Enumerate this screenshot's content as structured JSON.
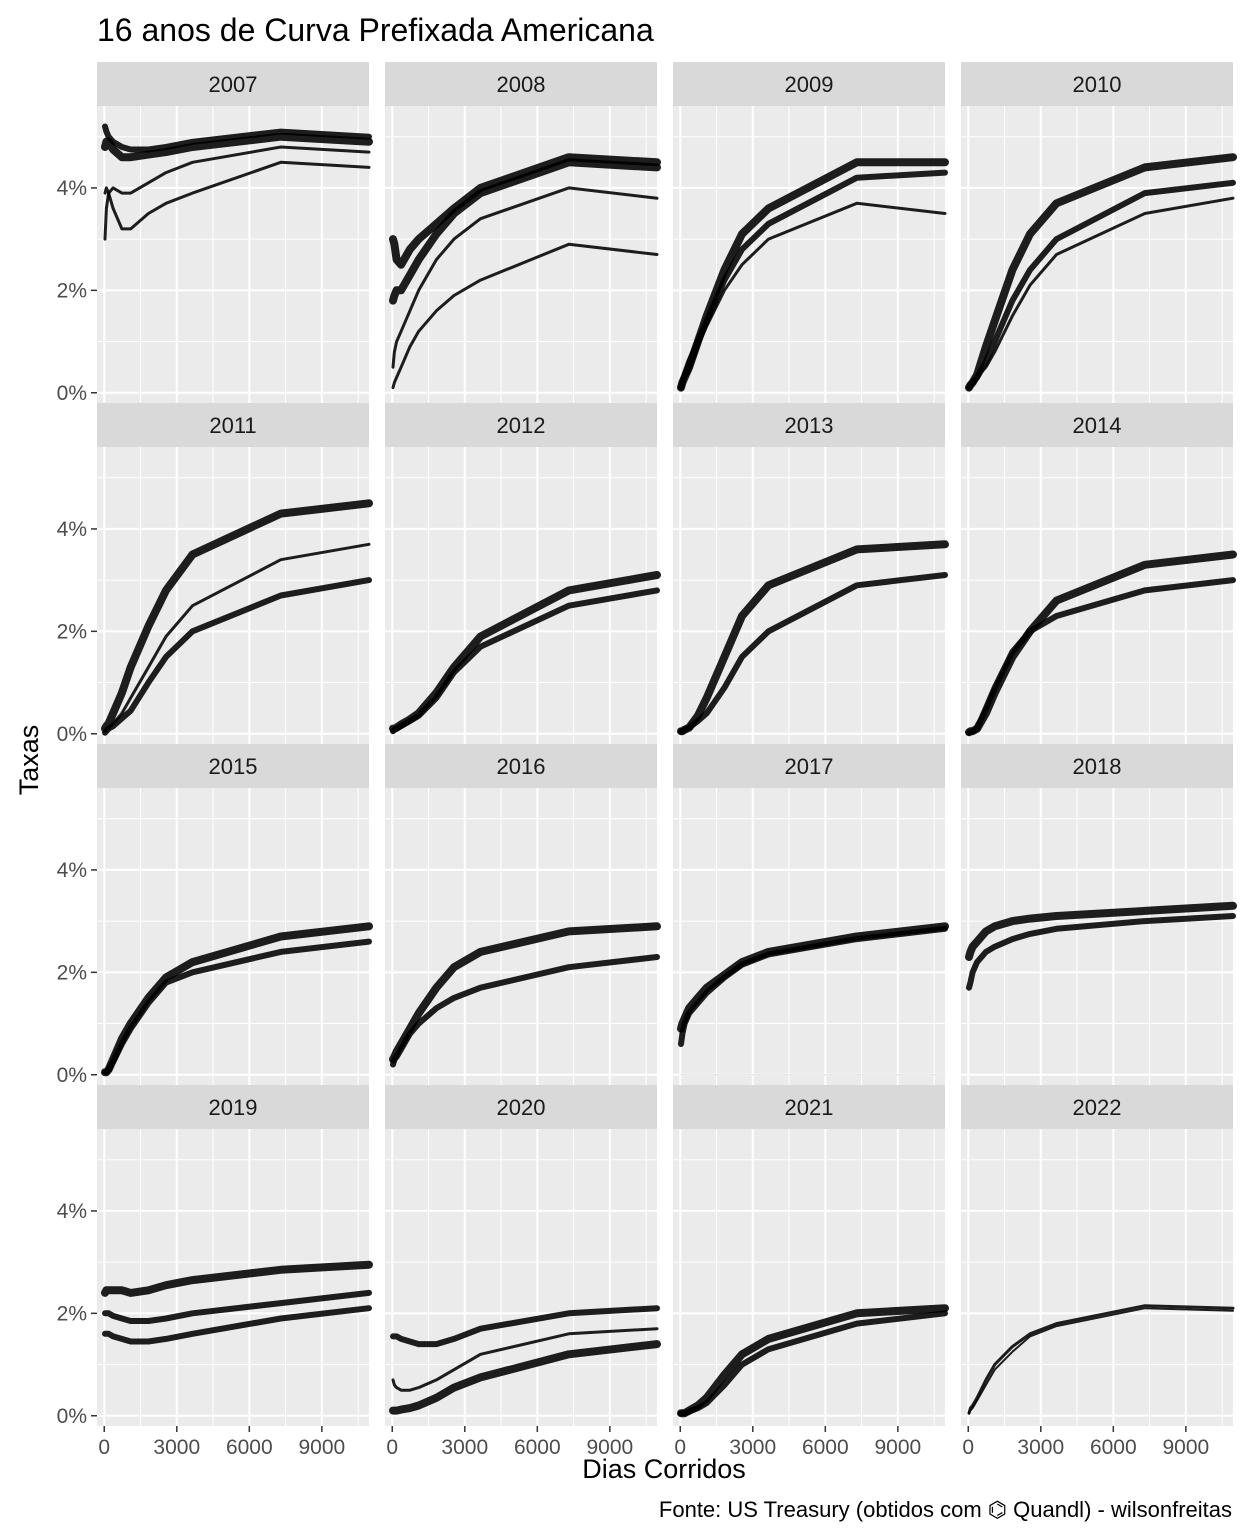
{
  "chart_data": {
    "type": "line",
    "title": "16 anos de Curva Prefixada Americana",
    "xlabel": "Dias Corridos",
    "ylabel": "Taxas",
    "caption": "Fonte: US Treasury (obtidos com ⌬ Quandl) - wilsonfreitas",
    "xlim": [
      -300,
      10950
    ],
    "ylim": [
      -0.2,
      5.6
    ],
    "x_ticks": [
      0,
      3000,
      6000,
      9000
    ],
    "x_tick_labels": [
      "0",
      "3000",
      "6000",
      "9000"
    ],
    "y_ticks": [
      0,
      2,
      4
    ],
    "y_tick_labels": [
      "0%",
      "2%",
      "4%"
    ],
    "grid": true,
    "x": [
      30,
      90,
      180,
      365,
      730,
      1095,
      1825,
      2555,
      3650,
      7300,
      10950
    ],
    "facets": [
      {
        "label": "2007",
        "curves": [
          {
            "y": [
              5.2,
              5.1,
              5.0,
              4.9,
              4.8,
              4.75,
              4.75,
              4.8,
              4.9,
              5.1,
              5.0
            ],
            "w": 6
          },
          {
            "y": [
              4.8,
              4.9,
              4.9,
              4.75,
              4.6,
              4.6,
              4.65,
              4.7,
              4.8,
              5.0,
              4.9
            ],
            "w": 8
          },
          {
            "y": [
              3.0,
              3.6,
              3.9,
              4.0,
              3.9,
              3.9,
              4.1,
              4.3,
              4.5,
              4.8,
              4.7
            ],
            "w": 3
          },
          {
            "y": [
              3.9,
              4.0,
              3.9,
              3.6,
              3.2,
              3.2,
              3.5,
              3.7,
              3.9,
              4.5,
              4.4
            ],
            "w": 3
          }
        ]
      },
      {
        "label": "2008",
        "curves": [
          {
            "y": [
              3.0,
              2.9,
              2.6,
              2.5,
              2.8,
              3.0,
              3.3,
              3.6,
              4.0,
              4.6,
              4.5
            ],
            "w": 8
          },
          {
            "y": [
              1.8,
              1.9,
              2.0,
              2.0,
              2.3,
              2.6,
              3.1,
              3.5,
              3.9,
              4.5,
              4.4
            ],
            "w": 8
          },
          {
            "y": [
              0.5,
              0.8,
              1.0,
              1.2,
              1.6,
              2.0,
              2.6,
              3.0,
              3.4,
              4.0,
              3.8
            ],
            "w": 3
          },
          {
            "y": [
              0.1,
              0.2,
              0.3,
              0.5,
              0.9,
              1.2,
              1.6,
              1.9,
              2.2,
              2.9,
              2.7
            ],
            "w": 3
          }
        ]
      },
      {
        "label": "2009",
        "curves": [
          {
            "y": [
              0.1,
              0.2,
              0.3,
              0.5,
              1.0,
              1.5,
              2.4,
              3.1,
              3.6,
              4.5,
              4.5
            ],
            "w": 8
          },
          {
            "y": [
              0.1,
              0.2,
              0.35,
              0.6,
              1.0,
              1.4,
              2.2,
              2.8,
              3.3,
              4.2,
              4.3
            ],
            "w": 6
          },
          {
            "y": [
              0.1,
              0.2,
              0.3,
              0.4,
              0.9,
              1.3,
              2.0,
              2.5,
              3.0,
              3.7,
              3.5
            ],
            "w": 3
          }
        ]
      },
      {
        "label": "2010",
        "curves": [
          {
            "y": [
              0.1,
              0.15,
              0.2,
              0.35,
              0.9,
              1.4,
              2.4,
              3.1,
              3.7,
              4.4,
              4.6
            ],
            "w": 8
          },
          {
            "y": [
              0.1,
              0.15,
              0.2,
              0.3,
              0.6,
              1.0,
              1.8,
              2.4,
              3.0,
              3.9,
              4.1
            ],
            "w": 6
          },
          {
            "y": [
              0.1,
              0.15,
              0.2,
              0.3,
              0.5,
              0.8,
              1.5,
              2.1,
              2.7,
              3.5,
              3.8
            ],
            "w": 3
          }
        ]
      },
      {
        "label": "2011",
        "curves": [
          {
            "y": [
              0.1,
              0.15,
              0.2,
              0.4,
              0.8,
              1.3,
              2.1,
              2.8,
              3.5,
              4.3,
              4.5
            ],
            "w": 8
          },
          {
            "y": [
              0.05,
              0.1,
              0.1,
              0.2,
              0.4,
              0.7,
              1.3,
              1.9,
              2.5,
              3.4,
              3.7
            ],
            "w": 3
          },
          {
            "y": [
              0.02,
              0.05,
              0.1,
              0.15,
              0.3,
              0.45,
              1.0,
              1.5,
              2.0,
              2.7,
              3.0
            ],
            "w": 6
          }
        ]
      },
      {
        "label": "2012",
        "curves": [
          {
            "y": [
              0.1,
              0.1,
              0.12,
              0.18,
              0.28,
              0.4,
              0.8,
              1.3,
              1.9,
              2.8,
              3.1
            ],
            "w": 8
          },
          {
            "y": [
              0.05,
              0.08,
              0.1,
              0.15,
              0.25,
              0.35,
              0.7,
              1.2,
              1.7,
              2.5,
              2.8
            ],
            "w": 6
          }
        ]
      },
      {
        "label": "2013",
        "curves": [
          {
            "y": [
              0.05,
              0.05,
              0.08,
              0.12,
              0.35,
              0.7,
              1.5,
              2.3,
              2.9,
              3.6,
              3.7
            ],
            "w": 8
          },
          {
            "y": [
              0.05,
              0.05,
              0.08,
              0.12,
              0.25,
              0.4,
              0.9,
              1.5,
              2.0,
              2.9,
              3.1
            ],
            "w": 6
          }
        ]
      },
      {
        "label": "2014",
        "curves": [
          {
            "y": [
              0.03,
              0.05,
              0.05,
              0.1,
              0.4,
              0.8,
              1.5,
              2.0,
              2.6,
              3.3,
              3.5
            ],
            "w": 8
          },
          {
            "y": [
              0.02,
              0.03,
              0.05,
              0.1,
              0.5,
              0.9,
              1.6,
              2.0,
              2.3,
              2.8,
              3.0
            ],
            "w": 6
          }
        ]
      },
      {
        "label": "2015",
        "curves": [
          {
            "y": [
              0.05,
              0.05,
              0.1,
              0.3,
              0.7,
              1.0,
              1.5,
              1.9,
              2.2,
              2.7,
              2.9
            ],
            "w": 8
          },
          {
            "y": [
              0.05,
              0.05,
              0.1,
              0.25,
              0.6,
              0.9,
              1.4,
              1.8,
              2.0,
              2.4,
              2.6
            ],
            "w": 6
          }
        ]
      },
      {
        "label": "2016",
        "curves": [
          {
            "y": [
              0.3,
              0.35,
              0.45,
              0.6,
              0.9,
              1.2,
              1.7,
              2.1,
              2.4,
              2.8,
              2.9
            ],
            "w": 8
          },
          {
            "y": [
              0.2,
              0.3,
              0.35,
              0.5,
              0.8,
              1.0,
              1.3,
              1.5,
              1.7,
              2.1,
              2.3
            ],
            "w": 6
          }
        ]
      },
      {
        "label": "2017",
        "curves": [
          {
            "y": [
              0.9,
              1.0,
              1.1,
              1.3,
              1.5,
              1.7,
              1.95,
              2.2,
              2.4,
              2.7,
              2.9
            ],
            "w": 8
          },
          {
            "y": [
              0.6,
              0.8,
              1.0,
              1.2,
              1.4,
              1.6,
              1.9,
              2.15,
              2.35,
              2.65,
              2.85
            ],
            "w": 6
          },
          {
            "y": [
              0,
              0,
              0,
              0,
              0,
              0,
              0,
              0,
              0,
              0,
              0
            ],
            "w": 1.2,
            "o": 0.25
          }
        ]
      },
      {
        "label": "2018",
        "curves": [
          {
            "y": [
              2.3,
              2.4,
              2.5,
              2.6,
              2.8,
              2.9,
              3.0,
              3.05,
              3.1,
              3.2,
              3.3
            ],
            "w": 8
          },
          {
            "y": [
              1.7,
              1.8,
              2.0,
              2.2,
              2.4,
              2.5,
              2.65,
              2.75,
              2.85,
              3.0,
              3.1
            ],
            "w": 6
          }
        ]
      },
      {
        "label": "2019",
        "curves": [
          {
            "y": [
              2.4,
              2.45,
              2.45,
              2.45,
              2.45,
              2.4,
              2.45,
              2.55,
              2.65,
              2.85,
              2.95
            ],
            "w": 8
          },
          {
            "y": [
              2.0,
              2.0,
              2.0,
              1.95,
              1.9,
              1.85,
              1.85,
              1.9,
              2.0,
              2.2,
              2.4
            ],
            "w": 6
          },
          {
            "y": [
              1.6,
              1.6,
              1.6,
              1.55,
              1.5,
              1.45,
              1.45,
              1.5,
              1.6,
              1.9,
              2.1
            ],
            "w": 6
          }
        ]
      },
      {
        "label": "2020",
        "curves": [
          {
            "y": [
              1.55,
              1.55,
              1.55,
              1.5,
              1.45,
              1.4,
              1.4,
              1.5,
              1.7,
              2.0,
              2.1
            ],
            "w": 6
          },
          {
            "y": [
              0.7,
              0.6,
              0.55,
              0.5,
              0.5,
              0.55,
              0.7,
              0.9,
              1.2,
              1.6,
              1.7
            ],
            "w": 3
          },
          {
            "y": [
              0.1,
              0.1,
              0.1,
              0.12,
              0.15,
              0.2,
              0.35,
              0.55,
              0.75,
              1.2,
              1.4
            ],
            "w": 8
          }
        ]
      },
      {
        "label": "2021",
        "curves": [
          {
            "y": [
              0.05,
              0.05,
              0.05,
              0.1,
              0.2,
              0.35,
              0.8,
              1.2,
              1.5,
              2.0,
              2.1
            ],
            "w": 8
          },
          {
            "y": [
              0.05,
              0.05,
              0.05,
              0.08,
              0.15,
              0.25,
              0.6,
              1.0,
              1.3,
              1.8,
              2.0
            ],
            "w": 6
          }
        ]
      },
      {
        "label": "2022",
        "curves": [
          {
            "y": [
              0.05,
              0.15,
              0.2,
              0.35,
              0.7,
              1.0,
              1.35,
              1.6,
              1.8,
              2.15,
              2.1
            ],
            "w": 3
          },
          {
            "y": [
              0.05,
              0.1,
              0.15,
              0.3,
              0.6,
              0.9,
              1.25,
              1.55,
              1.75,
              2.1,
              2.05
            ],
            "w": 2
          }
        ]
      }
    ]
  }
}
